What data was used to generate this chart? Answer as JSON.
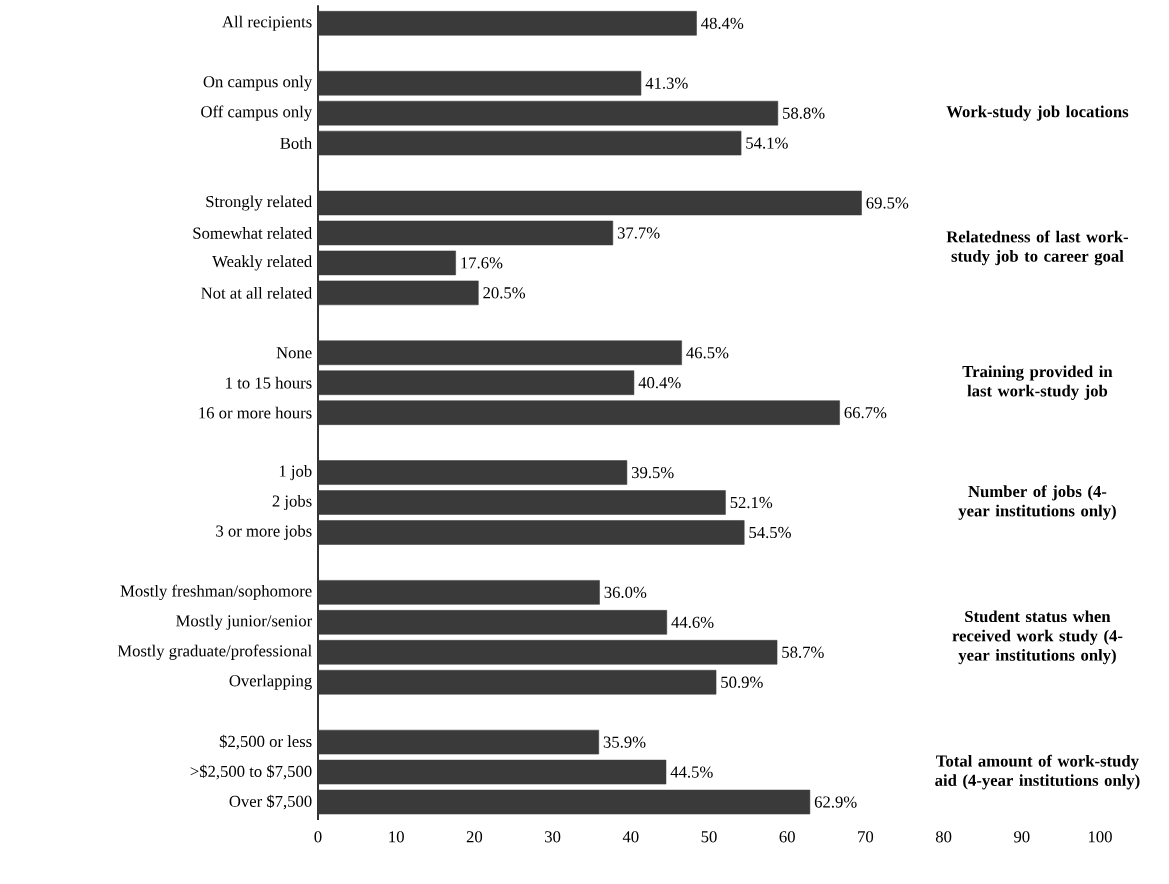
{
  "chart_data": {
    "type": "bar",
    "orientation": "horizontal",
    "categories": [
      "All recipients",
      null,
      "On campus only",
      "Off campus only",
      "Both",
      null,
      "Strongly related",
      "Somewhat related",
      "Weakly related",
      "Not at all related",
      null,
      "None",
      "1 to 15 hours",
      "16 or more hours",
      null,
      "1 job",
      "2 jobs",
      "3 or more jobs",
      null,
      "Mostly freshman/sophomore",
      "Mostly junior/senior",
      "Mostly graduate/professional",
      "Overlapping",
      null,
      "$2,500 or less",
      ">$2,500 to $7,500",
      "Over $7,500"
    ],
    "values": [
      48.4,
      null,
      41.3,
      58.8,
      54.1,
      null,
      69.5,
      37.7,
      17.6,
      20.5,
      null,
      46.5,
      40.4,
      66.7,
      null,
      39.5,
      52.1,
      54.5,
      null,
      36.0,
      44.6,
      58.7,
      50.9,
      null,
      35.9,
      44.5,
      62.9
    ],
    "value_labels": [
      "48.4%",
      null,
      "41.3%",
      "58.8%",
      "54.1%",
      null,
      "69.5%",
      "37.7%",
      "17.6%",
      "20.5%",
      null,
      "46.5%",
      "40.4%",
      "66.7%",
      null,
      "39.5%",
      "52.1%",
      "54.5%",
      null,
      "36.0%",
      "44.6%",
      "58.7%",
      "50.9%",
      null,
      "35.9%",
      "44.5%",
      "62.9%"
    ],
    "color": "#3a3a3a",
    "xlim": [
      0,
      100
    ],
    "xticks": [
      0,
      10,
      20,
      30,
      40,
      50,
      60,
      70,
      80,
      90,
      100
    ],
    "annotations": [
      "Work-study job locations",
      "Relatedness of last work-study job to career goal",
      "Training provided in last work-study job",
      "Number of jobs (4-year institutions only)",
      "Student status when received work study (4-year institutions only)",
      "Total amount of work-study aid (4-year institutions only)"
    ]
  }
}
